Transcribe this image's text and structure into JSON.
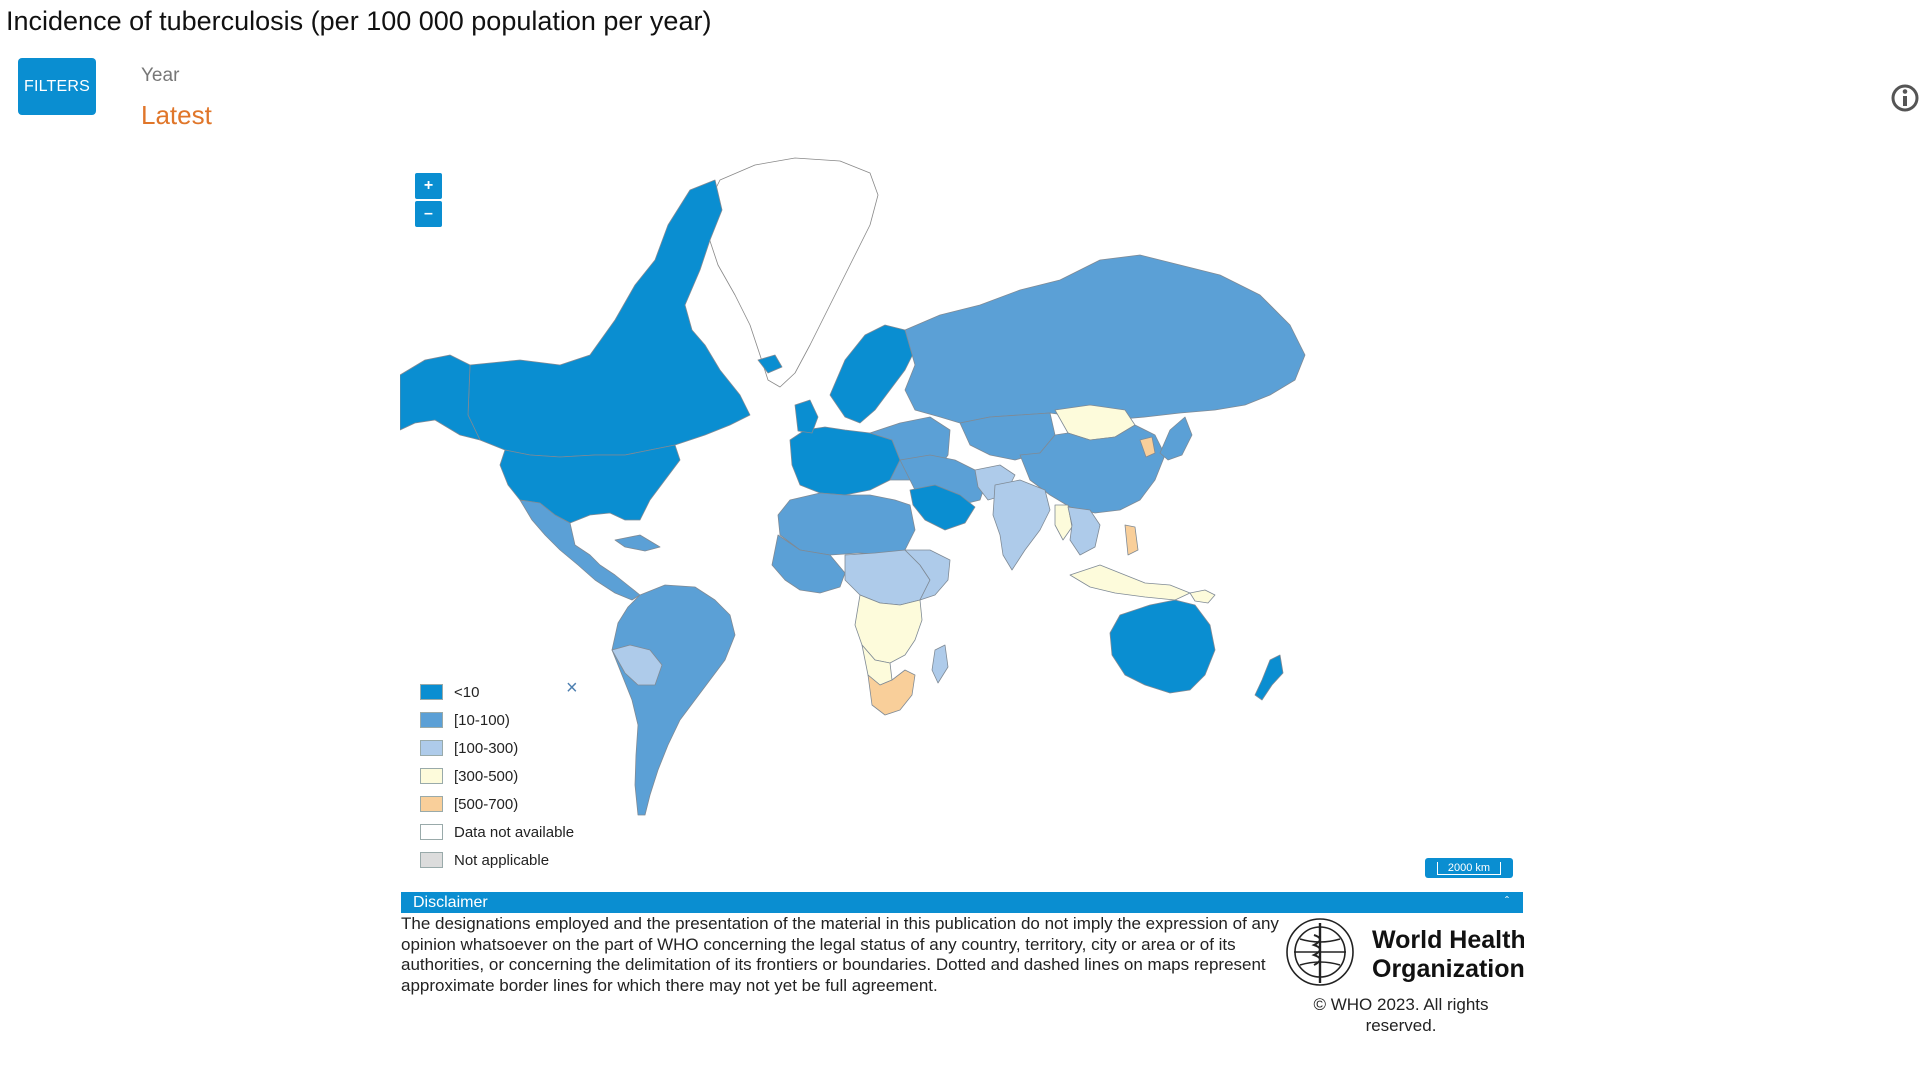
{
  "header": {
    "title": "Incidence of tuberculosis (per 100 000 population per year)"
  },
  "filters": {
    "button_label": "FILTERS",
    "year_label": "Year",
    "year_value": "Latest"
  },
  "map": {
    "zoom_in": "+",
    "zoom_out": "–",
    "scale_label": "2000 km",
    "legend": {
      "close_symbol": "×",
      "items": [
        {
          "label": "<10",
          "color": "#0a8ed1"
        },
        {
          "label": "[10-100)",
          "color": "#5ba0d6"
        },
        {
          "label": "[100-300)",
          "color": "#aecbea"
        },
        {
          "label": "[300-500)",
          "color": "#fdfbdb"
        },
        {
          "label": "[500-700)",
          "color": "#f9cf9a"
        },
        {
          "label": "Data not available",
          "color": "#ffffff"
        },
        {
          "label": "Not applicable",
          "color": "#dcdcdc"
        }
      ]
    }
  },
  "disclaimer": {
    "title": "Disclaimer",
    "toggle_icon": "ˆ",
    "text": "The designations employed and the presentation of the material in this publication do not imply the expression of any opinion whatsoever on the part of WHO concerning the legal status of any country, territory, city or area or of its authorities, or concerning the delimitation of its frontiers or boundaries. Dotted and dashed lines on maps represent approximate border lines for which there may not yet be full agreement."
  },
  "footer": {
    "org_line1": "World Health",
    "org_line2": "Organization",
    "copyright": "© WHO 2023. All rights reserved."
  }
}
